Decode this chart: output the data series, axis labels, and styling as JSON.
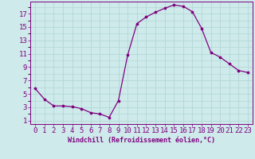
{
  "x": [
    0,
    1,
    2,
    3,
    4,
    5,
    6,
    7,
    8,
    9,
    10,
    11,
    12,
    13,
    14,
    15,
    16,
    17,
    18,
    19,
    20,
    21,
    22,
    23
  ],
  "y": [
    5.8,
    4.2,
    3.2,
    3.2,
    3.1,
    2.8,
    2.2,
    2.0,
    1.5,
    4.0,
    10.8,
    15.5,
    16.5,
    17.2,
    17.8,
    18.3,
    18.1,
    17.3,
    14.8,
    11.2,
    10.5,
    9.5,
    8.5,
    8.2
  ],
  "line_color": "#800080",
  "marker": "o",
  "marker_size": 2.2,
  "bg_color": "#ceeaea",
  "grid_color": "#aed4d4",
  "tick_color": "#800080",
  "xlabel": "Windchill (Refroidissement éolien,°C)",
  "xlabel_fontsize": 6.0,
  "xtick_labels": [
    "0",
    "1",
    "2",
    "3",
    "4",
    "5",
    "6",
    "7",
    "8",
    "9",
    "10",
    "11",
    "12",
    "13",
    "14",
    "15",
    "16",
    "17",
    "18",
    "19",
    "20",
    "21",
    "22",
    "23"
  ],
  "ytick_labels": [
    "1",
    "3",
    "5",
    "7",
    "9",
    "11",
    "13",
    "15",
    "17"
  ],
  "ytick_values": [
    1,
    3,
    5,
    7,
    9,
    11,
    13,
    15,
    17
  ],
  "xlim": [
    -0.5,
    23.5
  ],
  "ylim": [
    0.5,
    18.8
  ],
  "spine_color": "#800080",
  "font_color": "#800080",
  "font_size": 6.5
}
